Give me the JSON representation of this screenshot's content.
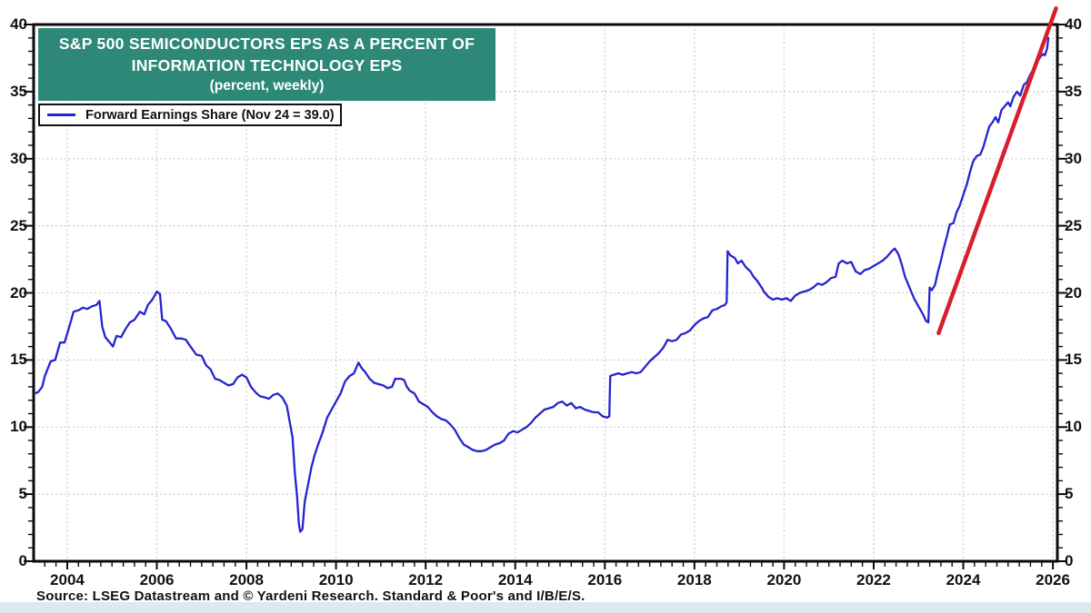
{
  "page": {
    "background": "#ffffff",
    "bottom_strip_color": "#e1e7ee"
  },
  "title_box": {
    "line1": "S&P 500 SEMICONDUCTORS EPS AS A PERCENT OF",
    "line2": "INFORMATION TECHNOLOGY EPS",
    "line3": "(percent, weekly)",
    "bg_color": "#2d8878",
    "text_color": "#ffffff"
  },
  "legend": {
    "label": "Forward Earnings Share (Nov 24 = 39.0)",
    "line_color": "#2424d0"
  },
  "source_line": "Source: LSEG Datastream and © Yardeni Research. Standard & Poor's and I/B/E/S.",
  "chart_data": {
    "type": "line",
    "title": "S&P 500 Semiconductors EPS as a Percent of Information Technology EPS",
    "subtitle": "(percent, weekly)",
    "xlim": [
      2003.25,
      2026.1
    ],
    "ylim": [
      0,
      40
    ],
    "y_major_ticks": [
      0,
      5,
      10,
      15,
      20,
      25,
      30,
      35,
      40
    ],
    "y_minor_step": 1,
    "x_label_years": [
      2004,
      2006,
      2008,
      2010,
      2012,
      2014,
      2016,
      2018,
      2020,
      2022,
      2024,
      2026
    ],
    "x_minor_step": 0.25,
    "grid": "dotted",
    "grid_color": "#c6c6c6",
    "frame_color": "#0a0a0a",
    "legend_position": "top-left",
    "axis_labels_both_sides": true,
    "last_point_note": "Nov 24 = 39.0",
    "series": [
      {
        "name": "Forward Earnings Share",
        "color": "#2424d0",
        "width": 2.3,
        "points": [
          [
            2003.27,
            12.5
          ],
          [
            2003.35,
            12.6
          ],
          [
            2003.44,
            13.0
          ],
          [
            2003.5,
            13.8
          ],
          [
            2003.63,
            14.9
          ],
          [
            2003.73,
            15.0
          ],
          [
            2003.84,
            16.3
          ],
          [
            2003.94,
            16.3
          ],
          [
            2004.04,
            17.4
          ],
          [
            2004.14,
            18.6
          ],
          [
            2004.25,
            18.7
          ],
          [
            2004.35,
            18.9
          ],
          [
            2004.45,
            18.8
          ],
          [
            2004.55,
            19.0
          ],
          [
            2004.65,
            19.1
          ],
          [
            2004.72,
            19.4
          ],
          [
            2004.78,
            17.5
          ],
          [
            2004.85,
            16.7
          ],
          [
            2004.95,
            16.3
          ],
          [
            2005.02,
            16.0
          ],
          [
            2005.1,
            16.8
          ],
          [
            2005.2,
            16.7
          ],
          [
            2005.3,
            17.3
          ],
          [
            2005.4,
            17.8
          ],
          [
            2005.5,
            18.0
          ],
          [
            2005.62,
            18.6
          ],
          [
            2005.72,
            18.4
          ],
          [
            2005.8,
            19.1
          ],
          [
            2005.9,
            19.5
          ],
          [
            2006.0,
            20.1
          ],
          [
            2006.07,
            19.9
          ],
          [
            2006.12,
            18.0
          ],
          [
            2006.2,
            17.9
          ],
          [
            2006.3,
            17.4
          ],
          [
            2006.43,
            16.6
          ],
          [
            2006.55,
            16.6
          ],
          [
            2006.65,
            16.5
          ],
          [
            2006.75,
            16.0
          ],
          [
            2006.88,
            15.4
          ],
          [
            2007.0,
            15.3
          ],
          [
            2007.1,
            14.6
          ],
          [
            2007.2,
            14.3
          ],
          [
            2007.3,
            13.6
          ],
          [
            2007.4,
            13.5
          ],
          [
            2007.5,
            13.3
          ],
          [
            2007.6,
            13.1
          ],
          [
            2007.7,
            13.2
          ],
          [
            2007.8,
            13.7
          ],
          [
            2007.9,
            13.9
          ],
          [
            2008.0,
            13.7
          ],
          [
            2008.1,
            13.0
          ],
          [
            2008.2,
            12.6
          ],
          [
            2008.3,
            12.3
          ],
          [
            2008.42,
            12.2
          ],
          [
            2008.5,
            12.1
          ],
          [
            2008.6,
            12.4
          ],
          [
            2008.7,
            12.5
          ],
          [
            2008.8,
            12.2
          ],
          [
            2008.9,
            11.6
          ],
          [
            2008.97,
            10.3
          ],
          [
            2009.03,
            9.2
          ],
          [
            2009.08,
            6.6
          ],
          [
            2009.13,
            4.8
          ],
          [
            2009.17,
            2.8
          ],
          [
            2009.2,
            2.2
          ],
          [
            2009.25,
            2.4
          ],
          [
            2009.3,
            4.4
          ],
          [
            2009.38,
            5.8
          ],
          [
            2009.45,
            7.0
          ],
          [
            2009.52,
            7.9
          ],
          [
            2009.6,
            8.7
          ],
          [
            2009.7,
            9.6
          ],
          [
            2009.8,
            10.7
          ],
          [
            2009.9,
            11.3
          ],
          [
            2010.0,
            11.9
          ],
          [
            2010.1,
            12.5
          ],
          [
            2010.2,
            13.4
          ],
          [
            2010.3,
            13.8
          ],
          [
            2010.4,
            14.0
          ],
          [
            2010.5,
            14.8
          ],
          [
            2010.57,
            14.4
          ],
          [
            2010.65,
            14.1
          ],
          [
            2010.75,
            13.6
          ],
          [
            2010.85,
            13.3
          ],
          [
            2010.95,
            13.2
          ],
          [
            2011.05,
            13.1
          ],
          [
            2011.15,
            12.9
          ],
          [
            2011.25,
            13.0
          ],
          [
            2011.32,
            13.6
          ],
          [
            2011.45,
            13.6
          ],
          [
            2011.52,
            13.5
          ],
          [
            2011.58,
            13.0
          ],
          [
            2011.65,
            12.7
          ],
          [
            2011.75,
            12.5
          ],
          [
            2011.85,
            11.9
          ],
          [
            2011.95,
            11.7
          ],
          [
            2012.05,
            11.5
          ],
          [
            2012.15,
            11.1
          ],
          [
            2012.25,
            10.8
          ],
          [
            2012.35,
            10.6
          ],
          [
            2012.45,
            10.5
          ],
          [
            2012.55,
            10.2
          ],
          [
            2012.65,
            9.8
          ],
          [
            2012.75,
            9.2
          ],
          [
            2012.85,
            8.7
          ],
          [
            2012.95,
            8.5
          ],
          [
            2013.05,
            8.3
          ],
          [
            2013.15,
            8.2
          ],
          [
            2013.25,
            8.2
          ],
          [
            2013.35,
            8.3
          ],
          [
            2013.45,
            8.5
          ],
          [
            2013.55,
            8.7
          ],
          [
            2013.65,
            8.8
          ],
          [
            2013.75,
            9.0
          ],
          [
            2013.85,
            9.5
          ],
          [
            2013.95,
            9.7
          ],
          [
            2014.05,
            9.6
          ],
          [
            2014.15,
            9.8
          ],
          [
            2014.25,
            10.0
          ],
          [
            2014.35,
            10.3
          ],
          [
            2014.45,
            10.7
          ],
          [
            2014.55,
            11.0
          ],
          [
            2014.65,
            11.3
          ],
          [
            2014.75,
            11.4
          ],
          [
            2014.85,
            11.5
          ],
          [
            2014.95,
            11.8
          ],
          [
            2015.05,
            11.9
          ],
          [
            2015.15,
            11.6
          ],
          [
            2015.25,
            11.8
          ],
          [
            2015.35,
            11.4
          ],
          [
            2015.45,
            11.5
          ],
          [
            2015.55,
            11.3
          ],
          [
            2015.65,
            11.2
          ],
          [
            2015.75,
            11.1
          ],
          [
            2015.85,
            11.1
          ],
          [
            2015.95,
            10.8
          ],
          [
            2016.05,
            10.7
          ],
          [
            2016.1,
            10.8
          ],
          [
            2016.12,
            13.8
          ],
          [
            2016.2,
            13.9
          ],
          [
            2016.3,
            14.0
          ],
          [
            2016.4,
            13.9
          ],
          [
            2016.5,
            14.0
          ],
          [
            2016.6,
            14.1
          ],
          [
            2016.7,
            14.0
          ],
          [
            2016.8,
            14.1
          ],
          [
            2016.9,
            14.5
          ],
          [
            2017.0,
            14.9
          ],
          [
            2017.1,
            15.2
          ],
          [
            2017.2,
            15.5
          ],
          [
            2017.3,
            15.9
          ],
          [
            2017.4,
            16.5
          ],
          [
            2017.5,
            16.4
          ],
          [
            2017.6,
            16.5
          ],
          [
            2017.7,
            16.9
          ],
          [
            2017.8,
            17.0
          ],
          [
            2017.9,
            17.2
          ],
          [
            2018.0,
            17.6
          ],
          [
            2018.1,
            17.9
          ],
          [
            2018.2,
            18.1
          ],
          [
            2018.3,
            18.2
          ],
          [
            2018.4,
            18.7
          ],
          [
            2018.5,
            18.8
          ],
          [
            2018.6,
            19.0
          ],
          [
            2018.68,
            19.1
          ],
          [
            2018.72,
            19.3
          ],
          [
            2018.74,
            23.1
          ],
          [
            2018.8,
            22.8
          ],
          [
            2018.9,
            22.6
          ],
          [
            2018.97,
            22.2
          ],
          [
            2019.05,
            22.4
          ],
          [
            2019.15,
            21.9
          ],
          [
            2019.25,
            21.6
          ],
          [
            2019.32,
            21.2
          ],
          [
            2019.4,
            20.9
          ],
          [
            2019.5,
            20.4
          ],
          [
            2019.55,
            20.1
          ],
          [
            2019.65,
            19.7
          ],
          [
            2019.75,
            19.5
          ],
          [
            2019.85,
            19.6
          ],
          [
            2019.95,
            19.5
          ],
          [
            2020.05,
            19.6
          ],
          [
            2020.15,
            19.4
          ],
          [
            2020.25,
            19.8
          ],
          [
            2020.35,
            20.0
          ],
          [
            2020.45,
            20.1
          ],
          [
            2020.55,
            20.2
          ],
          [
            2020.65,
            20.4
          ],
          [
            2020.75,
            20.7
          ],
          [
            2020.85,
            20.6
          ],
          [
            2020.95,
            20.8
          ],
          [
            2021.05,
            21.1
          ],
          [
            2021.15,
            21.2
          ],
          [
            2021.22,
            22.2
          ],
          [
            2021.3,
            22.4
          ],
          [
            2021.4,
            22.2
          ],
          [
            2021.5,
            22.3
          ],
          [
            2021.6,
            21.6
          ],
          [
            2021.7,
            21.4
          ],
          [
            2021.8,
            21.7
          ],
          [
            2021.9,
            21.8
          ],
          [
            2022.0,
            22.0
          ],
          [
            2022.1,
            22.2
          ],
          [
            2022.2,
            22.4
          ],
          [
            2022.3,
            22.7
          ],
          [
            2022.4,
            23.1
          ],
          [
            2022.47,
            23.3
          ],
          [
            2022.55,
            22.9
          ],
          [
            2022.62,
            22.2
          ],
          [
            2022.7,
            21.2
          ],
          [
            2022.8,
            20.4
          ],
          [
            2022.9,
            19.6
          ],
          [
            2023.0,
            19.0
          ],
          [
            2023.1,
            18.4
          ],
          [
            2023.17,
            17.9
          ],
          [
            2023.22,
            17.8
          ],
          [
            2023.25,
            20.4
          ],
          [
            2023.3,
            20.2
          ],
          [
            2023.37,
            20.6
          ],
          [
            2023.43,
            21.5
          ],
          [
            2023.5,
            22.4
          ],
          [
            2023.57,
            23.4
          ],
          [
            2023.64,
            24.3
          ],
          [
            2023.7,
            25.1
          ],
          [
            2023.78,
            25.2
          ],
          [
            2023.85,
            26.0
          ],
          [
            2023.92,
            26.5
          ],
          [
            2024.0,
            27.3
          ],
          [
            2024.08,
            28.1
          ],
          [
            2024.15,
            29.0
          ],
          [
            2024.22,
            29.8
          ],
          [
            2024.3,
            30.2
          ],
          [
            2024.38,
            30.3
          ],
          [
            2024.45,
            30.9
          ],
          [
            2024.52,
            31.7
          ],
          [
            2024.58,
            32.4
          ],
          [
            2024.65,
            32.7
          ],
          [
            2024.72,
            33.1
          ],
          [
            2024.78,
            32.7
          ],
          [
            2024.85,
            33.6
          ],
          [
            2024.92,
            33.9
          ],
          [
            2025.0,
            34.2
          ],
          [
            2025.05,
            33.9
          ],
          [
            2025.12,
            34.6
          ],
          [
            2025.2,
            35.0
          ],
          [
            2025.27,
            34.7
          ],
          [
            2025.35,
            35.5
          ],
          [
            2025.42,
            35.7
          ],
          [
            2025.5,
            36.3
          ],
          [
            2025.57,
            36.7
          ],
          [
            2025.65,
            37.2
          ],
          [
            2025.72,
            37.6
          ],
          [
            2025.78,
            37.8
          ],
          [
            2025.82,
            37.7
          ],
          [
            2025.87,
            38.2
          ],
          [
            2025.9,
            39.0
          ]
        ]
      },
      {
        "name": "Trend line",
        "color": "#d81e2e",
        "width": 4.5,
        "points": [
          [
            2023.45,
            17.0
          ],
          [
            2026.07,
            41.2
          ]
        ]
      }
    ]
  }
}
